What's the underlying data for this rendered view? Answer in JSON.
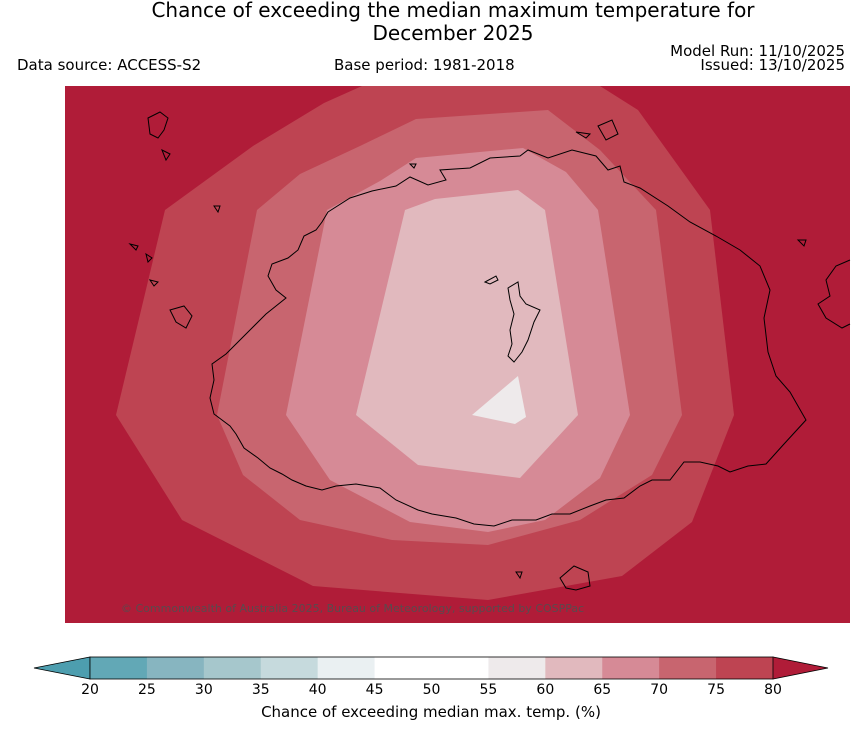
{
  "title_line1": "Chance of exceeding the median maximum temperature for",
  "title_line2": "December 2025",
  "data_source": "Data source: ACCESS-S2",
  "base_period": "Base period: 1981-2018",
  "model_run": "Model Run: 11/10/2025",
  "issued": "Issued: 13/10/2025",
  "copyright": "© Commonwealth of Australia 2025, Bureau of Meteorology, supported by COSPPac",
  "colorbar": {
    "label": "Chance of exceeding median max. temp. (%)",
    "ticks": [
      "20",
      "25",
      "30",
      "35",
      "40",
      "45",
      "50",
      "55",
      "60",
      "65",
      "70",
      "75",
      "80"
    ],
    "colors": [
      "#62a8b6",
      "#87b5c0",
      "#a6c7cc",
      "#c6dadd",
      "#eaf0f2",
      "#ffffff",
      "#ffffff",
      "#eeeaeb",
      "#e1b9be",
      "#d68a96",
      "#c8656f",
      "#be4452"
    ],
    "under_color": "#4d9eaf",
    "over_color": "#b01c38"
  },
  "map_levels": {
    "outer_color": "#b01c38",
    "band_75_80_color": "#be4452",
    "band_70_75_color": "#c8656f",
    "band_65_70_color": "#d68a96",
    "band_60_65_color": "#e1b9be",
    "band_55_60_color": "#eeeaeb"
  }
}
